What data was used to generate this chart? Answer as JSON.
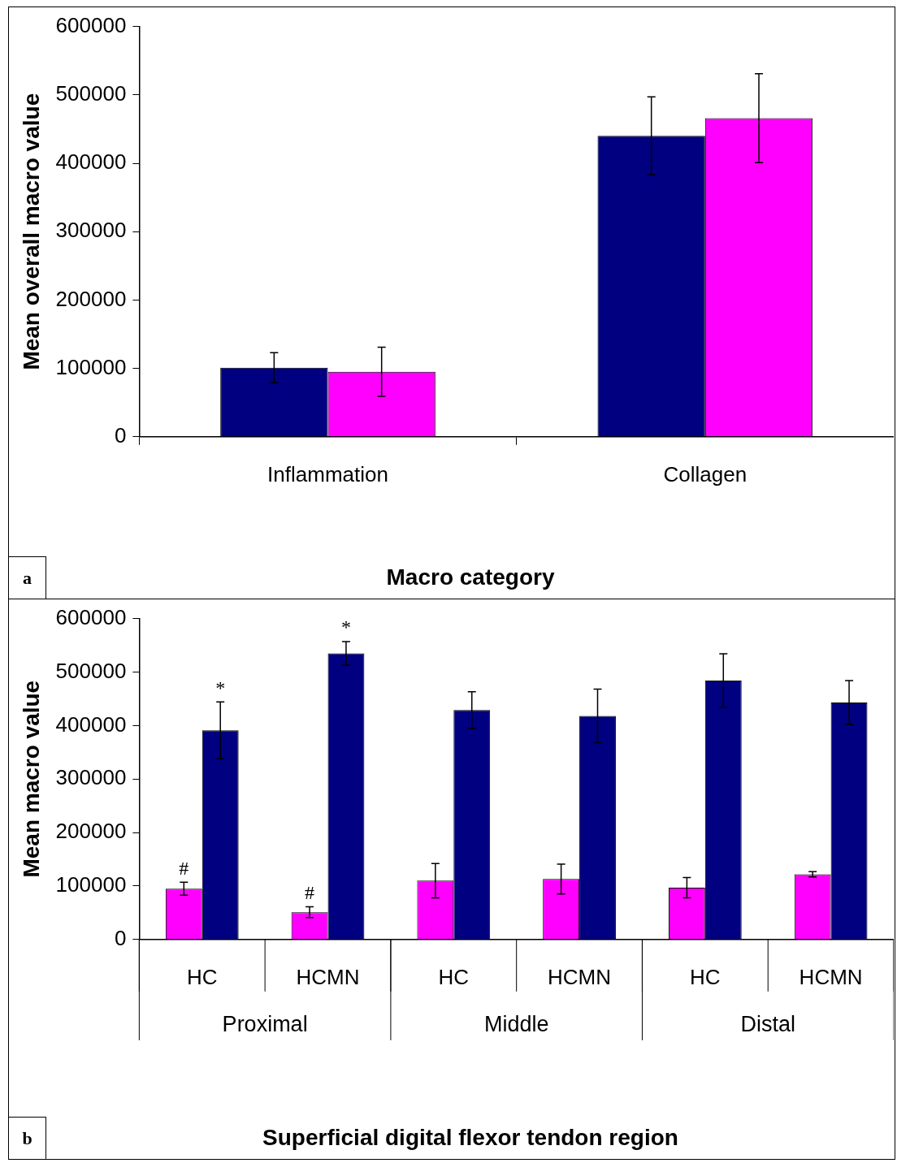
{
  "chart_data": [
    {
      "type": "bar",
      "xlabel": "Macro category",
      "ylabel": "Mean overall macro value",
      "categories": [
        "Inflammation",
        "Collagen"
      ],
      "series": [
        {
          "color": "#000080",
          "values": [
            101000,
            440000
          ],
          "errors": [
            22000,
            57000
          ]
        },
        {
          "color": "#ff00ff",
          "values": [
            95000,
            466000
          ],
          "errors": [
            36000,
            65000
          ]
        }
      ],
      "ylim": [
        0,
        600000
      ],
      "yticks": [
        0,
        100000,
        200000,
        300000,
        400000,
        500000,
        600000
      ],
      "grid": false,
      "legend": false,
      "annotations": [
        "a"
      ]
    },
    {
      "type": "bar",
      "xlabel": "Superficial digital flexor tendon region",
      "ylabel": "Mean macro value",
      "categories": [
        "HC",
        "HCMN",
        "HC",
        "HCMN",
        "HC",
        "HCMN"
      ],
      "series": [
        {
          "color": "#ff00ff",
          "values": [
            95000,
            51000,
            110000,
            113000,
            97000,
            122000
          ],
          "errors": [
            12000,
            10000,
            32000,
            28000,
            19000,
            5000
          ]
        },
        {
          "color": "#000080",
          "values": [
            391000,
            535000,
            429000,
            418000,
            484000,
            443000
          ],
          "errors": [
            53000,
            22000,
            34000,
            50000,
            50000,
            41000
          ]
        }
      ],
      "ylim": [
        0,
        600000
      ],
      "yticks": [
        0,
        100000,
        200000,
        300000,
        400000,
        500000,
        600000
      ],
      "grid": false,
      "legend": false,
      "annotations": [
        "b",
        "Proximal",
        "Middle",
        "Distal",
        {
          "text": "#",
          "x": "HC",
          "y": 95000
        },
        {
          "text": "#",
          "x": "HCMN",
          "y": 51000
        },
        {
          "text": "*",
          "x": "HC",
          "y": 391000
        },
        {
          "text": "*",
          "x": "HCMN",
          "y": 535000
        }
      ]
    }
  ]
}
